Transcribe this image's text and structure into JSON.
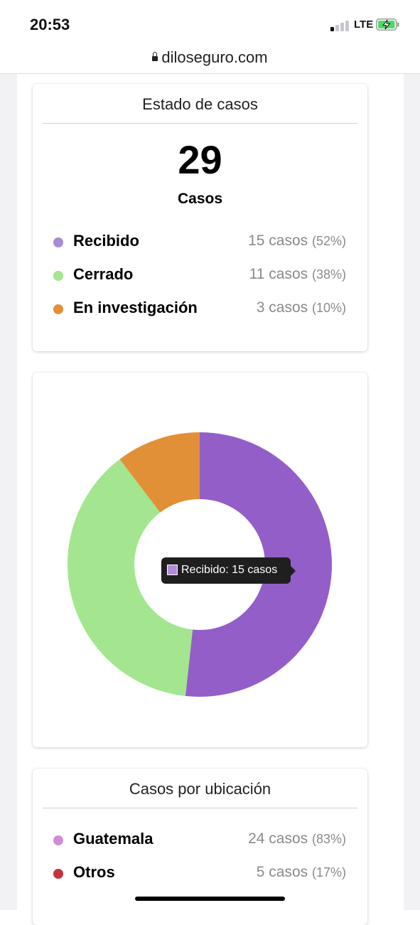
{
  "status_bar": {
    "time": "20:53",
    "network": "LTE"
  },
  "browser": {
    "url": "diloseguro.com"
  },
  "estado_card": {
    "title": "Estado de casos",
    "total": "29",
    "total_label": "Casos",
    "items": [
      {
        "label": "Recibido",
        "value": "15 casos",
        "pct": "(52%)",
        "color": "#a98bd0"
      },
      {
        "label": "Cerrado",
        "value": "11 casos",
        "pct": "(38%)",
        "color": "#a3e68f"
      },
      {
        "label": "En investigación",
        "value": "3 casos",
        "pct": "(10%)",
        "color": "#e29038"
      }
    ]
  },
  "chart_data": {
    "type": "pie",
    "donut": true,
    "categories": [
      "Recibido",
      "Cerrado",
      "En investigación"
    ],
    "values": [
      15,
      11,
      3
    ],
    "colors": [
      "#945ec9",
      "#a3e68f",
      "#e29038"
    ],
    "tooltip": "Recibido: 15 casos"
  },
  "ubicacion_card": {
    "title": "Casos por ubicación",
    "items": [
      {
        "label": "Guatemala",
        "value": "24 casos",
        "pct": "(83%)",
        "color": "#cf8ed3"
      },
      {
        "label": "Otros",
        "value": "5 casos",
        "pct": "(17%)",
        "color": "#c3323c"
      }
    ]
  }
}
